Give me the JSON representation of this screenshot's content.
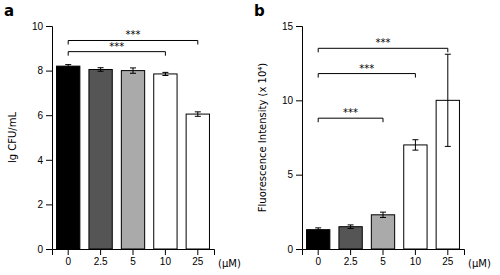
{
  "chart_data": [
    {
      "type": "bar",
      "title": "a",
      "categories": [
        "0",
        "2.5",
        "5",
        "10",
        "25"
      ],
      "values": [
        8.2,
        8.05,
        8.0,
        7.85,
        6.05
      ],
      "errors": [
        0.07,
        0.08,
        0.12,
        0.07,
        0.1
      ],
      "colors": [
        "#000000",
        "#555555",
        "#aaaaaa",
        "#ffffff",
        "#ffffff"
      ],
      "xlabel": "(μM)",
      "ylabel": "lg CFU/mL",
      "ylim": [
        0,
        10
      ],
      "yticks": [
        0,
        2,
        4,
        6,
        8,
        10
      ],
      "grid": false,
      "significance": [
        {
          "from": "0",
          "to": "25",
          "y": 9.35,
          "label": "***"
        },
        {
          "from": "0",
          "to": "10",
          "y": 8.85,
          "label": "***"
        }
      ]
    },
    {
      "type": "bar",
      "title": "b",
      "categories": [
        "0",
        "2.5",
        "5",
        "10",
        "25"
      ],
      "values": [
        1.3,
        1.5,
        2.3,
        7.0,
        10.0
      ],
      "errors": [
        0.12,
        0.12,
        0.18,
        0.35,
        3.1
      ],
      "colors": [
        "#000000",
        "#555555",
        "#aaaaaa",
        "#ffffff",
        "#ffffff"
      ],
      "xlabel": "(μM)",
      "ylabel": "Fluorescence Intensity (x 10⁴)",
      "ylim": [
        0,
        15
      ],
      "yticks": [
        0,
        5,
        10,
        15
      ],
      "grid": false,
      "significance": [
        {
          "from": "0",
          "to": "25",
          "y": 13.5,
          "label": "***"
        },
        {
          "from": "0",
          "to": "10",
          "y": 11.8,
          "label": "***"
        },
        {
          "from": "0",
          "to": "5",
          "y": 8.8,
          "label": "***"
        }
      ]
    }
  ]
}
